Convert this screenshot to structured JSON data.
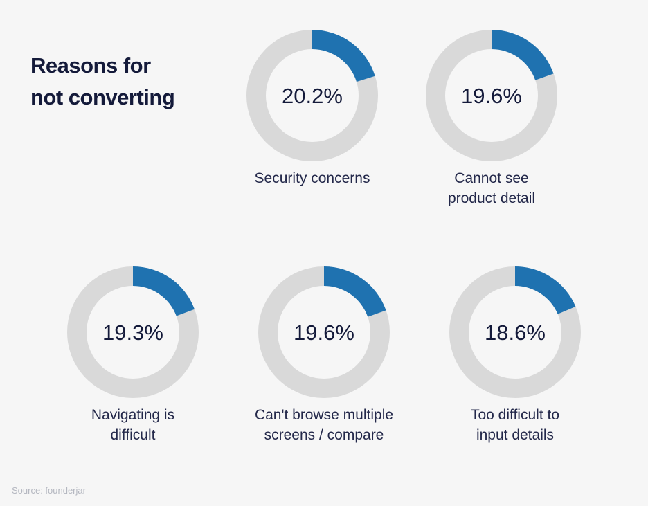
{
  "title_line1": "Reasons for",
  "title_line2": "not converting",
  "source": "Source: founderjar",
  "colors": {
    "accent": "#1f72b0",
    "track": "#d9d9d9",
    "text": "#141a3a",
    "background": "#f6f6f6"
  },
  "chart_data": {
    "type": "pie",
    "title": "Reasons for not converting",
    "style": "donut",
    "categories": [
      "Security concerns",
      "Cannot see product detail",
      "Navigating is difficult",
      "Can't browse multiple screens / compare",
      "Too difficult to input details"
    ],
    "values": [
      20.2,
      19.6,
      19.3,
      19.6,
      18.6
    ],
    "items": [
      {
        "label": "Security concerns",
        "value": 20.2,
        "display": "20.2%"
      },
      {
        "label": "Cannot see product detail",
        "value": 19.6,
        "display": "19.6%"
      },
      {
        "label": "Navigating is difficult",
        "value": 19.3,
        "display": "19.3%"
      },
      {
        "label": "Can't browse multiple screens / compare",
        "value": 19.6,
        "display": "19.6%"
      },
      {
        "label": "Too difficult to input details",
        "value": 18.6,
        "display": "18.6%"
      }
    ]
  }
}
